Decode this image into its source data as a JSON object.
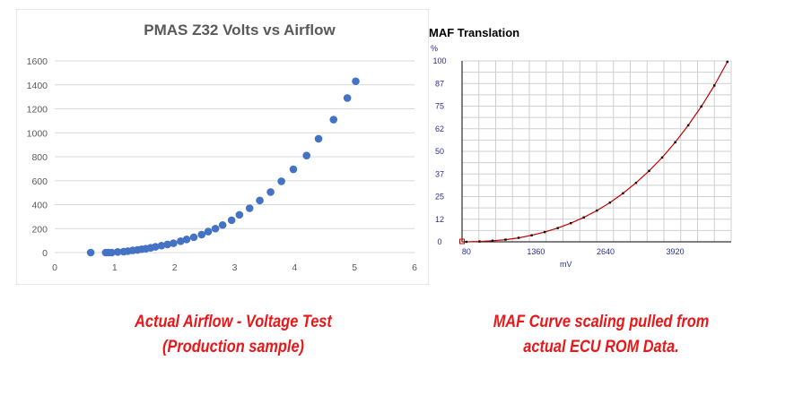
{
  "chart_data": [
    {
      "type": "scatter",
      "title": "PMAS Z32 Volts vs Airflow",
      "xlabel": "",
      "ylabel": "",
      "xlim": [
        0,
        6
      ],
      "ylim": [
        0,
        1600
      ],
      "xticks": [
        "0",
        "1",
        "2",
        "3",
        "4",
        "5",
        "6"
      ],
      "yticks": [
        "0",
        "200",
        "400",
        "600",
        "800",
        "1000",
        "1200",
        "1400",
        "1600"
      ],
      "grid": true,
      "marker_color": "#4472c4",
      "series": [
        {
          "x": [
            0.6,
            0.85,
            0.9,
            0.95,
            1.05,
            1.15,
            1.22,
            1.3,
            1.38,
            1.45,
            1.52,
            1.6,
            1.68,
            1.78,
            1.88,
            1.98,
            2.1,
            2.2,
            2.32,
            2.45,
            2.56,
            2.68,
            2.8,
            2.95,
            3.08,
            3.25,
            3.42,
            3.6,
            3.78,
            3.98,
            4.2,
            4.4,
            4.65,
            4.88,
            5.02
          ],
          "y": [
            0,
            0,
            0,
            0,
            5,
            8,
            12,
            18,
            22,
            28,
            32,
            40,
            48,
            58,
            68,
            78,
            95,
            110,
            128,
            150,
            175,
            200,
            230,
            270,
            315,
            370,
            435,
            505,
            595,
            695,
            810,
            950,
            1110,
            1290,
            1430
          ]
        }
      ]
    },
    {
      "type": "line",
      "title": "MAF Translation",
      "y_unit_label": "%",
      "xlabel": "mV",
      "yticks": [
        "0",
        "12",
        "25",
        "37",
        "50",
        "62",
        "75",
        "87",
        "100"
      ],
      "ytick_values": [
        0,
        12.5,
        25,
        37.5,
        50,
        62.5,
        75,
        87.5,
        100
      ],
      "xticks": [
        "80",
        "1360",
        "2640",
        "3920"
      ],
      "xtick_values": [
        80,
        1360,
        2640,
        3920
      ],
      "xlim": [
        0,
        4950
      ],
      "ylim": [
        0,
        100
      ],
      "grid": true,
      "line_color": "#c00000",
      "marker_color": "#000000",
      "x": [
        0,
        80,
        320,
        560,
        800,
        1040,
        1280,
        1520,
        1760,
        2000,
        2240,
        2480,
        2720,
        2960,
        3200,
        3440,
        3680,
        3920,
        4160,
        4400,
        4640,
        4880
      ],
      "y": [
        0,
        0,
        0.2,
        0.6,
        1.2,
        2.2,
        3.6,
        5.4,
        7.6,
        10.3,
        13.5,
        17.3,
        21.7,
        26.8,
        32.6,
        39.2,
        46.6,
        55,
        64.4,
        74.8,
        86.4,
        99.5
      ]
    }
  ],
  "captions": {
    "left": [
      "Actual Airflow - Voltage Test",
      "(Production sample)"
    ],
    "right": [
      "MAF Curve scaling pulled from",
      "actual ECU ROM Data."
    ]
  }
}
